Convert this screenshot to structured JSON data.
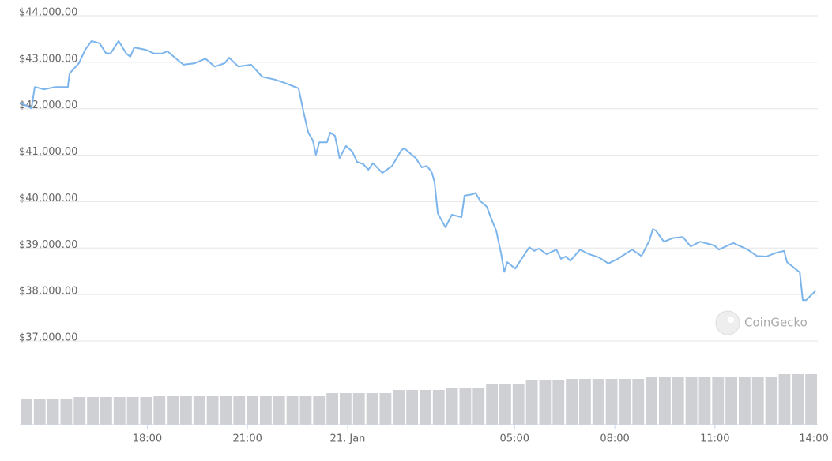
{
  "chart_data": {
    "type": "line",
    "watermark": "CoinGecko",
    "xlim": [
      -9.82,
      14.08
    ],
    "xticks": [
      {
        "value": -6,
        "label": "18:00"
      },
      {
        "value": -3,
        "label": "21:00"
      },
      {
        "value": 0,
        "label": "21. Jan"
      },
      {
        "value": 5,
        "label": "05:00"
      },
      {
        "value": 8,
        "label": "08:00"
      },
      {
        "value": 11,
        "label": "11:00"
      },
      {
        "value": 14,
        "label": "14:00"
      }
    ],
    "ylim": [
      37000,
      44000
    ],
    "yticks": [
      {
        "value": 37000,
        "label": "$37,000.00"
      },
      {
        "value": 38000,
        "label": "$38,000.00"
      },
      {
        "value": 39000,
        "label": "$39,000.00"
      },
      {
        "value": 40000,
        "label": "$40,000.00"
      },
      {
        "value": 41000,
        "label": "$41,000.00"
      },
      {
        "value": 42000,
        "label": "$42,000.00"
      },
      {
        "value": 43000,
        "label": "$43,000.00"
      },
      {
        "value": 44000,
        "label": "$44,000.00"
      }
    ],
    "grid": true,
    "x": [
      -9.82,
      -9.66,
      -9.47,
      -9.37,
      -9.09,
      -8.76,
      -8.38,
      -8.33,
      -8.05,
      -7.86,
      -7.67,
      -7.43,
      -7.24,
      -7.1,
      -6.86,
      -6.63,
      -6.51,
      -6.39,
      -6.04,
      -5.8,
      -5.56,
      -5.4,
      -5.09,
      -4.92,
      -4.59,
      -4.26,
      -3.98,
      -3.69,
      -3.55,
      -3.27,
      -2.89,
      -2.56,
      -2.18,
      -1.89,
      -1.47,
      -1.33,
      -1.18,
      -1.04,
      -0.95,
      -0.85,
      -0.62,
      -0.52,
      -0.38,
      -0.24,
      -0.05,
      0.14,
      0.28,
      0.47,
      0.62,
      0.76,
      1.04,
      1.33,
      1.61,
      1.7,
      2.04,
      2.22,
      2.37,
      2.51,
      2.6,
      2.7,
      2.93,
      3.12,
      3.41,
      3.5,
      3.74,
      3.83,
      3.98,
      4.17,
      4.31,
      4.45,
      4.59,
      4.69,
      4.78,
      5.02,
      5.3,
      5.44,
      5.59,
      5.73,
      5.96,
      6.25,
      6.39,
      6.53,
      6.67,
      6.96,
      7.24,
      7.53,
      7.81,
      8.09,
      8.52,
      8.8,
      9.04,
      9.14,
      9.23,
      9.47,
      9.75,
      10.04,
      10.27,
      10.56,
      10.98,
      11.12,
      11.55,
      11.98,
      12.26,
      12.54,
      12.83,
      13.07,
      13.16,
      13.4,
      13.54,
      13.63,
      13.73,
      13.87,
      14.01
    ],
    "series": [
      {
        "color": "#7cb5ec",
        "values": [
          42060,
          42010,
          41940,
          42400,
          42350,
          42400,
          42400,
          42690,
          42910,
          43200,
          43390,
          43340,
          43130,
          43120,
          43390,
          43120,
          43050,
          43250,
          43200,
          43120,
          43120,
          43170,
          42980,
          42880,
          42910,
          43010,
          42840,
          42910,
          43030,
          42840,
          42880,
          42620,
          42560,
          42490,
          42370,
          41890,
          41420,
          41250,
          40940,
          41210,
          41210,
          41420,
          41350,
          40870,
          41130,
          41010,
          40790,
          40740,
          40620,
          40760,
          40550,
          40700,
          41040,
          41080,
          40870,
          40670,
          40700,
          40580,
          40360,
          39680,
          39380,
          39650,
          39600,
          40060,
          40090,
          40120,
          39940,
          39820,
          39550,
          39310,
          38830,
          38420,
          38630,
          38490,
          38800,
          38950,
          38870,
          38920,
          38800,
          38900,
          38700,
          38750,
          38660,
          38900,
          38800,
          38730,
          38600,
          38700,
          38900,
          38760,
          39100,
          39340,
          39310,
          39070,
          39150,
          39170,
          38970,
          39070,
          38990,
          38900,
          39040,
          38900,
          38760,
          38750,
          38830,
          38870,
          38630,
          38490,
          38410,
          37810,
          37810,
          37910,
          38010
        ]
      }
    ],
    "volume": {
      "type": "bar",
      "color": "#cfd0d4",
      "ylim": [
        0,
        70
      ],
      "values": [
        33,
        33,
        33,
        33,
        35,
        35,
        35,
        35,
        35,
        35,
        36,
        36,
        36,
        36,
        36,
        36,
        36,
        36,
        36,
        36,
        36,
        36,
        36,
        40,
        40,
        40,
        40,
        40,
        44,
        44,
        44,
        44,
        47,
        47,
        47,
        51,
        51,
        51,
        56,
        56,
        56,
        58,
        58,
        58,
        58,
        58,
        58,
        60,
        60,
        60,
        60,
        60,
        60,
        61,
        61,
        61,
        61,
        64,
        64,
        64
      ]
    }
  }
}
